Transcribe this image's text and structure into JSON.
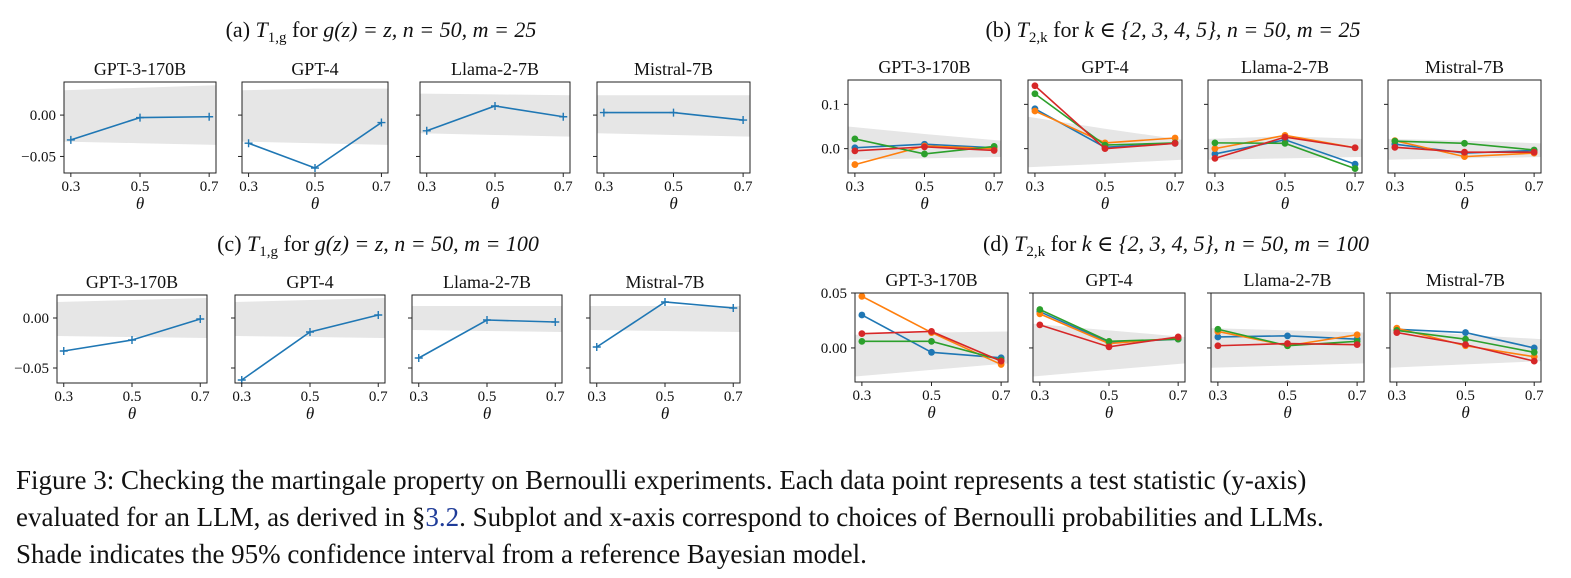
{
  "figure": {
    "caption_lines": [
      "Figure 3: Checking the martingale property on Bernoulli experiments. Each data point represents a test statistic (y-axis)",
      [
        "evaluated for an LLM, as derived in §",
        "3.2",
        ". Subplot and x-axis correspond to choices of Bernoulli probabilities and LLMs."
      ],
      "Shade indicates the 95% confidence interval from a reference Bayesian model."
    ]
  },
  "colors": {
    "blue": "#1f77b4",
    "orange": "#ff7f0e",
    "green": "#2ca02c",
    "red": "#d62728",
    "shade": "#e6e6e6"
  },
  "chart_data": [
    {
      "panel": "a",
      "type": "line",
      "title": "(a) T_{1,g} for g(z) = z, n = 50, m = 25",
      "title_parts": [
        "(a) ",
        "T",
        "1,g",
        " for ",
        "g(z) = z, n = 50, m = 25"
      ],
      "x": [
        0.3,
        0.5,
        0.7
      ],
      "xlabel": "θ",
      "xticks": [
        "0.3",
        "0.5",
        "0.7"
      ],
      "ylim": [
        -0.07,
        0.04
      ],
      "yticks": [
        0.0,
        -0.05
      ],
      "ytick_labels": [
        "0.00",
        "−0.05"
      ],
      "marker": "plus",
      "subplots": [
        {
          "model": "GPT-3-170B",
          "band": {
            "lower": [
              -0.032,
              -0.034,
              -0.036
            ],
            "upper": [
              0.03,
              0.033,
              0.036
            ]
          },
          "series": [
            {
              "color": "blue",
              "values": [
                -0.03,
                -0.003,
                -0.002
              ]
            }
          ]
        },
        {
          "model": "GPT-4",
          "band": {
            "lower": [
              -0.032,
              -0.034,
              -0.036
            ],
            "upper": [
              0.03,
              0.032,
              0.032
            ]
          },
          "series": [
            {
              "color": "blue",
              "values": [
                -0.034,
                -0.064,
                -0.009
              ]
            }
          ]
        },
        {
          "model": "Llama-2-7B",
          "band": {
            "lower": [
              -0.022,
              -0.024,
              -0.026
            ],
            "upper": [
              0.026,
              0.025,
              0.024
            ]
          },
          "series": [
            {
              "color": "blue",
              "values": [
                -0.019,
                0.011,
                -0.002
              ]
            }
          ]
        },
        {
          "model": "Mistral-7B",
          "band": {
            "lower": [
              -0.022,
              -0.024,
              -0.026
            ],
            "upper": [
              0.024,
              0.024,
              0.024
            ]
          },
          "series": [
            {
              "color": "blue",
              "values": [
                0.003,
                0.003,
                -0.006
              ]
            }
          ]
        }
      ]
    },
    {
      "panel": "b",
      "type": "line",
      "title": "(b) T_{2,k} for k ∈ {2, 3, 4, 5}, n = 50, m = 25",
      "title_parts": [
        "(b) ",
        "T",
        "2,k",
        " for ",
        "k ∈ {2, 3, 4, 5}, n = 50, m = 25"
      ],
      "x": [
        0.3,
        0.5,
        0.7
      ],
      "xlabel": "θ",
      "xticks": [
        "0.3",
        "0.5",
        "0.7"
      ],
      "ylim": [
        -0.055,
        0.155
      ],
      "yticks": [
        0.1,
        0.0
      ],
      "ytick_labels": [
        "0.1",
        "0.0"
      ],
      "marker": "circle",
      "subplots": [
        {
          "model": "GPT-3-170B",
          "band": {
            "lower": [
              -0.025,
              -0.022,
              -0.019
            ],
            "upper": [
              0.05,
              0.033,
              0.018
            ]
          },
          "series": [
            {
              "color": "blue",
              "values": [
                0.002,
                0.01,
                0.002
              ]
            },
            {
              "color": "orange",
              "values": [
                -0.036,
                0.006,
                0.0
              ]
            },
            {
              "color": "green",
              "values": [
                0.022,
                -0.012,
                0.005
              ]
            },
            {
              "color": "red",
              "values": [
                -0.005,
                0.004,
                -0.004
              ]
            }
          ]
        },
        {
          "model": "GPT-4",
          "band": {
            "lower": [
              -0.042,
              -0.034,
              -0.025
            ],
            "upper": [
              0.072,
              0.045,
              0.02
            ]
          },
          "series": [
            {
              "color": "blue",
              "values": [
                0.09,
                0.003,
                0.012
              ]
            },
            {
              "color": "orange",
              "values": [
                0.085,
                0.013,
                0.024
              ]
            },
            {
              "color": "green",
              "values": [
                0.124,
                0.008,
                0.013
              ]
            },
            {
              "color": "red",
              "values": [
                0.142,
                0.0,
                0.012
              ]
            }
          ]
        },
        {
          "model": "Llama-2-7B",
          "band": {
            "lower": [
              -0.025,
              -0.022,
              -0.019
            ],
            "upper": [
              0.022,
              0.028,
              0.022
            ]
          },
          "series": [
            {
              "color": "blue",
              "values": [
                -0.012,
                0.02,
                -0.035
              ]
            },
            {
              "color": "orange",
              "values": [
                0.0,
                0.03,
                0.002
              ]
            },
            {
              "color": "green",
              "values": [
                0.013,
                0.012,
                -0.045
              ]
            },
            {
              "color": "red",
              "values": [
                -0.022,
                0.026,
                0.002
              ]
            }
          ]
        },
        {
          "model": "Mistral-7B",
          "band": {
            "lower": [
              -0.025,
              -0.022,
              -0.019
            ],
            "upper": [
              0.022,
              0.018,
              0.012
            ]
          },
          "series": [
            {
              "color": "blue",
              "values": [
                0.01,
                -0.01,
                -0.004
              ]
            },
            {
              "color": "orange",
              "values": [
                0.018,
                -0.018,
                -0.01
              ]
            },
            {
              "color": "green",
              "values": [
                0.017,
                0.012,
                -0.003
              ]
            },
            {
              "color": "red",
              "values": [
                0.003,
                -0.008,
                -0.008
              ]
            }
          ]
        }
      ]
    },
    {
      "panel": "c",
      "type": "line",
      "title": "(c) T_{1,g} for g(z) = z, n = 50, m = 100",
      "title_parts": [
        "(c) ",
        "T",
        "1,g",
        " for ",
        "g(z) = z, n = 50, m = 100"
      ],
      "x": [
        0.3,
        0.5,
        0.7
      ],
      "xlabel": "θ",
      "xticks": [
        "0.3",
        "0.5",
        "0.7"
      ],
      "ylim": [
        -0.065,
        0.023
      ],
      "yticks": [
        0.0,
        -0.05
      ],
      "ytick_labels": [
        "0.00",
        "−0.05"
      ],
      "marker": "plus",
      "subplots": [
        {
          "model": "GPT-3-170B",
          "band": {
            "lower": [
              -0.018,
              -0.019,
              -0.02
            ],
            "upper": [
              0.016,
              0.018,
              0.02
            ]
          },
          "series": [
            {
              "color": "blue",
              "values": [
                -0.033,
                -0.022,
                -0.001
              ]
            }
          ]
        },
        {
          "model": "GPT-4",
          "band": {
            "lower": [
              -0.018,
              -0.019,
              -0.02
            ],
            "upper": [
              0.016,
              0.018,
              0.02
            ]
          },
          "series": [
            {
              "color": "blue",
              "values": [
                -0.062,
                -0.014,
                0.003
              ]
            }
          ]
        },
        {
          "model": "Llama-2-7B",
          "band": {
            "lower": [
              -0.012,
              -0.013,
              -0.014
            ],
            "upper": [
              0.012,
              0.012,
              0.012
            ]
          },
          "series": [
            {
              "color": "blue",
              "values": [
                -0.04,
                -0.002,
                -0.004
              ]
            }
          ]
        },
        {
          "model": "Mistral-7B",
          "band": {
            "lower": [
              -0.012,
              -0.013,
              -0.014
            ],
            "upper": [
              0.012,
              0.012,
              0.012
            ]
          },
          "series": [
            {
              "color": "blue",
              "values": [
                -0.029,
                0.016,
                0.01
              ]
            }
          ]
        }
      ]
    },
    {
      "panel": "d",
      "type": "line",
      "title": "(d) T_{2,k} for k ∈ {2, 3, 4, 5}, n = 50, m = 100",
      "title_parts": [
        "(d) ",
        "T",
        "2,k",
        " for ",
        "k ∈ {2, 3, 4, 5}, n = 50, m = 100"
      ],
      "x": [
        0.3,
        0.5,
        0.7
      ],
      "xlabel": "θ",
      "xticks": [
        "0.3",
        "0.5",
        "0.7"
      ],
      "ylim": [
        -0.031,
        0.05
      ],
      "yticks": [
        0.05,
        0.0
      ],
      "ytick_labels": [
        "0.05",
        "0.00"
      ],
      "marker": "circle",
      "subplots": [
        {
          "model": "GPT-3-170B",
          "band": {
            "lower": [
              -0.026,
              -0.02,
              -0.014
            ],
            "upper": [
              0.012,
              0.014,
              0.015
            ]
          },
          "series": [
            {
              "color": "blue",
              "values": [
                0.03,
                -0.004,
                -0.009
              ]
            },
            {
              "color": "orange",
              "values": [
                0.047,
                0.014,
                -0.015
              ]
            },
            {
              "color": "green",
              "values": [
                0.006,
                0.006,
                -0.011
              ]
            },
            {
              "color": "red",
              "values": [
                0.013,
                0.015,
                -0.012
              ]
            }
          ]
        },
        {
          "model": "GPT-4",
          "band": {
            "lower": [
              -0.026,
              -0.02,
              -0.014
            ],
            "upper": [
              0.022,
              0.016,
              0.01
            ]
          },
          "series": [
            {
              "color": "blue",
              "values": [
                0.033,
                0.005,
                0.008
              ]
            },
            {
              "color": "orange",
              "values": [
                0.031,
                0.004,
                0.009
              ]
            },
            {
              "color": "green",
              "values": [
                0.035,
                0.006,
                0.008
              ]
            },
            {
              "color": "red",
              "values": [
                0.021,
                0.001,
                0.01
              ]
            }
          ]
        },
        {
          "model": "Llama-2-7B",
          "band": {
            "lower": [
              -0.018,
              -0.016,
              -0.014
            ],
            "upper": [
              0.018,
              0.016,
              0.014
            ]
          },
          "series": [
            {
              "color": "blue",
              "values": [
                0.01,
                0.011,
                0.008
              ]
            },
            {
              "color": "orange",
              "values": [
                0.015,
                0.002,
                0.012
              ]
            },
            {
              "color": "green",
              "values": [
                0.017,
                0.002,
                0.006
              ]
            },
            {
              "color": "red",
              "values": [
                0.002,
                0.004,
                0.003
              ]
            }
          ]
        },
        {
          "model": "Mistral-7B",
          "band": {
            "lower": [
              -0.018,
              -0.015,
              -0.012
            ],
            "upper": [
              0.017,
              0.012,
              0.008
            ]
          },
          "series": [
            {
              "color": "blue",
              "values": [
                0.017,
                0.014,
                0.0
              ]
            },
            {
              "color": "orange",
              "values": [
                0.018,
                0.002,
                -0.008
              ]
            },
            {
              "color": "green",
              "values": [
                0.016,
                0.008,
                -0.004
              ]
            },
            {
              "color": "red",
              "values": [
                0.014,
                0.003,
                -0.012
              ]
            }
          ]
        }
      ]
    }
  ]
}
